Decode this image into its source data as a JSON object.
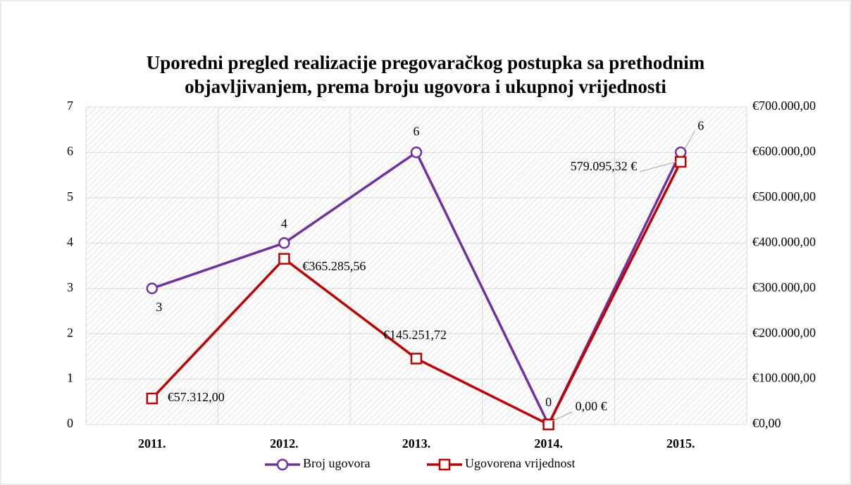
{
  "chart_data": {
    "type": "line",
    "title": "Uporedni pregled realizacije pregovaračkog postupka sa prethodnim objavljivanjem, prema broju ugovora i ukupnoj vrijednosti",
    "categories": [
      "2011.",
      "2012.",
      "2013.",
      "2014.",
      "2015."
    ],
    "series": [
      {
        "name": "Broj ugovora",
        "color": "#7030a0",
        "values": [
          3,
          4,
          6,
          0,
          6
        ]
      },
      {
        "name": "Ugovorena vrijednost",
        "color": "#c00000",
        "axis": "y2",
        "values": [
          57312,
          365285.56,
          145251.72,
          0,
          579095.32
        ],
        "value_labels": [
          "€57.312,00",
          "€365.285,56",
          "€145.251,72",
          "0,00 €",
          "579.095,32 €"
        ]
      }
    ],
    "ylim": [
      0,
      7
    ],
    "yticks": [
      0,
      1,
      2,
      3,
      4,
      5,
      6,
      7
    ],
    "y2lim": [
      0,
      700000
    ],
    "y2ticks": [
      {
        "value": 0,
        "label": "€0,00"
      },
      {
        "value": 100000,
        "label": "€100.000,00"
      },
      {
        "value": 200000,
        "label": "€200.000,00"
      },
      {
        "value": 300000,
        "label": "€300.000,00"
      },
      {
        "value": 400000,
        "label": "€400.000,00"
      },
      {
        "value": 500000,
        "label": "€500.000,00"
      },
      {
        "value": 600000,
        "label": "€600.000,00"
      },
      {
        "value": 700000,
        "label": "€700.000,00"
      }
    ],
    "grid": true,
    "legend": "bottom"
  }
}
